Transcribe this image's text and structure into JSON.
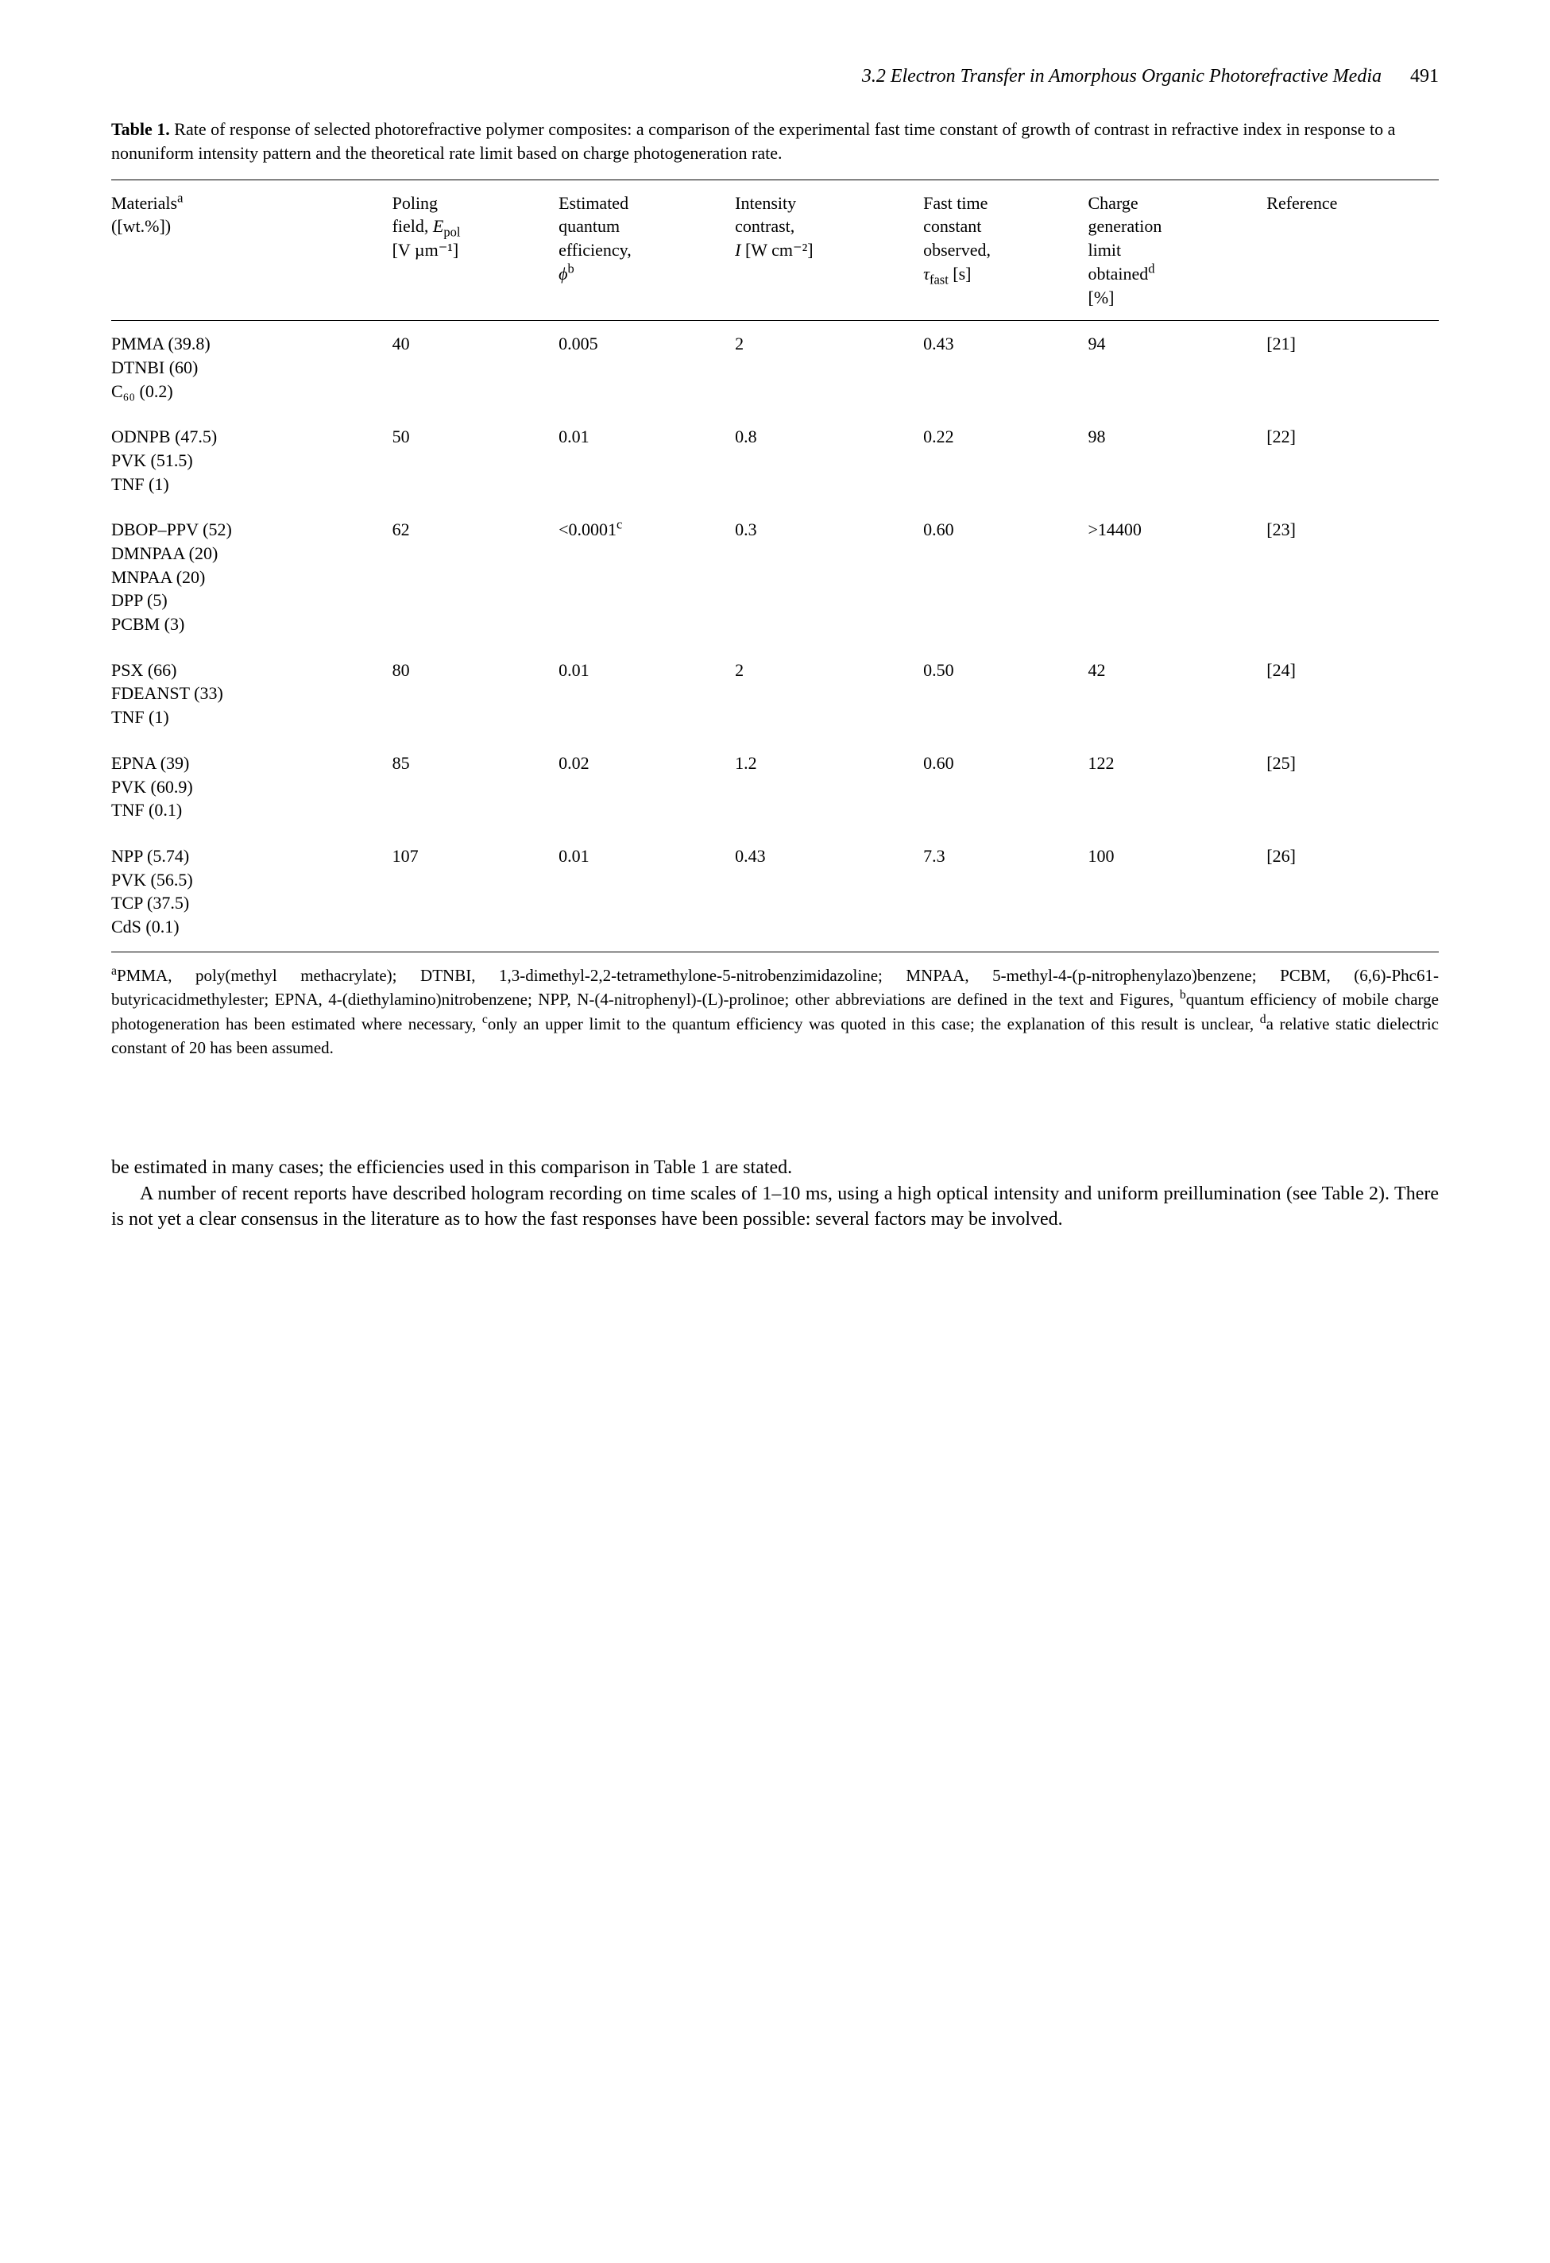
{
  "running_head": {
    "title": "3.2 Electron Transfer in Amorphous Organic Photorefractive Media",
    "page": "491"
  },
  "caption": {
    "label": "Table 1.",
    "text": "Rate of response of selected photorefractive polymer composites: a comparison of the experimental fast time constant of growth of contrast in refractive index in response to a nonuniform intensity pattern and the theoretical rate limit based on charge photogeneration rate."
  },
  "table": {
    "headers": {
      "materials_l1": "Materials",
      "materials_sup": "a",
      "materials_l2": "([wt.%])",
      "poling_l1": "Poling",
      "poling_l2_pre": "field, ",
      "poling_l2_var": "E",
      "poling_l2_sub": "pol",
      "poling_l3": "[V µm⁻¹]",
      "eff_l1": "Estimated",
      "eff_l2": "quantum",
      "eff_l3": "efficiency,",
      "eff_l4_var": "ϕ",
      "eff_l4_sup": "b",
      "int_l1": "Intensity",
      "int_l2": "contrast,",
      "int_l3_var": "I",
      "int_l3_unit": " [W cm⁻²]",
      "fast_l1": "Fast time",
      "fast_l2": "constant",
      "fast_l3": "observed,",
      "fast_l4_var": "τ",
      "fast_l4_sub": "fast",
      "fast_l4_unit": " [s]",
      "charge_l1": "Charge",
      "charge_l2": "generation",
      "charge_l3": "limit",
      "charge_l4": "obtained",
      "charge_l4_sup": "d",
      "charge_l5": "[%]",
      "ref": "Reference"
    },
    "rows": [
      {
        "mat1": "PMMA (39.8)",
        "mat2": "DTNBI (60)",
        "mat3": "C₆₀ (0.2)",
        "pol": "40",
        "eff": "0.005",
        "int": "2",
        "tau": "0.43",
        "charge": "94",
        "ref": "[21]"
      },
      {
        "mat1": "ODNPB (47.5)",
        "mat2": "PVK (51.5)",
        "mat3": "TNF (1)",
        "pol": "50",
        "eff": "0.01",
        "int": "0.8",
        "tau": "0.22",
        "charge": "98",
        "ref": "[22]"
      },
      {
        "mat1": "DBOP–PPV (52)",
        "mat2": "DMNPAA (20)",
        "mat3": "MNPAA (20)",
        "mat4": "DPP (5)",
        "mat5": "PCBM (3)",
        "pol": "62",
        "eff_pre": "<0.0001",
        "eff_sup": "c",
        "int": "0.3",
        "tau": "0.60",
        "charge": ">14400",
        "ref": "[23]"
      },
      {
        "mat1": "PSX (66)",
        "mat2": "FDEANST (33)",
        "mat3": "TNF (1)",
        "pol": "80",
        "eff": "0.01",
        "int": "2",
        "tau": "0.50",
        "charge": "42",
        "ref": "[24]"
      },
      {
        "mat1": "EPNA (39)",
        "mat2": "PVK (60.9)",
        "mat3": "TNF (0.1)",
        "pol": "85",
        "eff": "0.02",
        "int": "1.2",
        "tau": "0.60",
        "charge": "122",
        "ref": "[25]"
      },
      {
        "mat1": "NPP (5.74)",
        "mat2": "PVK (56.5)",
        "mat3": "TCP (37.5)",
        "mat4": "CdS (0.1)",
        "pol": "107",
        "eff": "0.01",
        "int": "0.43",
        "tau": "7.3",
        "charge": "100",
        "ref": "[26]"
      }
    ]
  },
  "footnotes": {
    "a_sup": "a",
    "a_text1": "PMMA, poly(methyl methacrylate); DTNBI, 1,3-dimethyl-2,2-tetramethylone-5-nitrobenzimidazoline; MNPAA, 5-methyl-4-(p-nitrophenylazo)benzene; PCBM, (6,6)-Phc61-butyricacidmethylester; EPNA, 4-(diethylamino)nitrobenzene; NPP, N-(4-nitrophenyl)-(L)-prolinoe; other abbreviations are defined in the text and Figures, ",
    "b_sup": "b",
    "b_text": "quantum efficiency of mobile charge photogeneration has been estimated where necessary, ",
    "c_sup": "c",
    "c_text": "only an upper limit to the quantum efficiency was quoted in this case; the explanation of this result is unclear, ",
    "d_sup": "d",
    "d_text": "a relative static dielectric constant of 20 has been assumed."
  },
  "body": {
    "p1": "be estimated in many cases; the efficiencies used in this comparison in Table 1 are stated.",
    "p2": "A number of recent reports have described hologram recording on time scales of 1–10 ms, using a high optical intensity and uniform preillumination (see Table 2). There is not yet a clear consensus in the literature as to how the fast responses have been possible: several factors may be involved."
  }
}
